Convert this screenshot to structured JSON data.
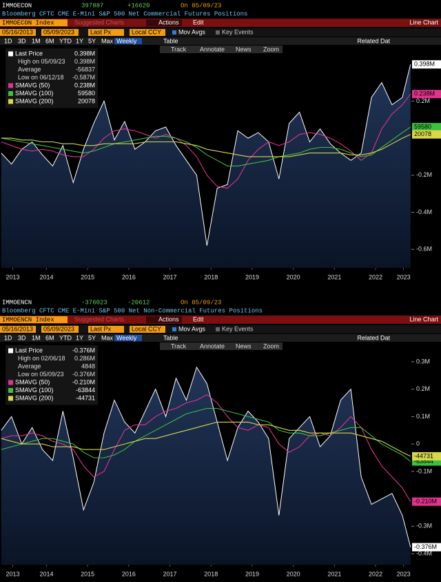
{
  "ui": {
    "suggested": "Suggested Charts",
    "actions": "Actions",
    "edit": "Edit",
    "line_chart": "Line Chart",
    "start": "05/16/2013",
    "end": "05/09/2023",
    "last_px": "Last Px",
    "ccy": "Local CCY",
    "mov_avgs": "Mov Avgs",
    "key_events": "Key Events",
    "periods": [
      "1D",
      "3D",
      "1M",
      "6M",
      "YTD",
      "1Y",
      "5Y",
      "Max"
    ],
    "freq": "Weekly",
    "table": "Table",
    "related": "Related Dat",
    "tools": [
      "Track",
      "Annotate",
      "News",
      "Zoom"
    ]
  },
  "chart_data": [
    {
      "type": "line",
      "ticker": "IMMOECON",
      "last": "397887",
      "change": "+16620",
      "date": "On 05/09/23",
      "title": "Bloomberg CFTC CME E-Mini S&P 500 Net Commercial Futures Positions",
      "index": "IMMOECON Index",
      "legend": "upper left",
      "x": [
        2013.4,
        2013.65,
        2013.9,
        2014.15,
        2014.4,
        2014.65,
        2014.9,
        2015.15,
        2015.4,
        2015.65,
        2015.9,
        2016.15,
        2016.4,
        2016.65,
        2016.9,
        2017.15,
        2017.4,
        2017.65,
        2017.9,
        2018.15,
        2018.4,
        2018.65,
        2018.9,
        2019.15,
        2019.4,
        2019.65,
        2019.9,
        2020.15,
        2020.4,
        2020.65,
        2020.9,
        2021.15,
        2021.4,
        2021.65,
        2021.9,
        2022.15,
        2022.4,
        2022.65,
        2022.9,
        2023.15,
        2023.35
      ],
      "xlim": [
        2013.37,
        2023.37
      ],
      "xticks": [
        {
          "value": 2013.68,
          "label": "2013"
        },
        {
          "value": 2014.5,
          "label": "2014"
        },
        {
          "value": 2015.5,
          "label": "2015"
        },
        {
          "value": 2016.5,
          "label": "2016"
        },
        {
          "value": 2017.5,
          "label": "2017"
        },
        {
          "value": 2018.5,
          "label": "2018"
        },
        {
          "value": 2019.5,
          "label": "2019"
        },
        {
          "value": 2020.5,
          "label": "2020"
        },
        {
          "value": 2021.5,
          "label": "2021"
        },
        {
          "value": 2022.5,
          "label": "2022"
        },
        {
          "value": 2023.18,
          "label": "2023"
        }
      ],
      "ylim": [
        -0.7,
        0.44
      ],
      "yticks": [
        {
          "value": 0.2,
          "label": "0.2M"
        },
        {
          "value": -0.2,
          "label": "-0.2M"
        },
        {
          "value": -0.4,
          "label": "-0.4M"
        },
        {
          "value": -0.6,
          "label": "-0.6M"
        }
      ],
      "stats": [
        {
          "label": "High on 05/09/23",
          "value_label": "0.398M"
        },
        {
          "label": "Average",
          "value_label": "-56837"
        },
        {
          "label": "Low on 06/12/18",
          "value_label": "-0.587M"
        }
      ],
      "series": [
        {
          "name": "Last Price",
          "color": "#ffffff",
          "fill": true,
          "last_label": "0.398M",
          "values": [
            -0.08,
            -0.14,
            -0.06,
            -0.02,
            -0.09,
            -0.15,
            -0.04,
            -0.24,
            -0.06,
            0.08,
            0.2,
            -0.01,
            0.09,
            -0.06,
            -0.02,
            0.04,
            0.06,
            -0.04,
            -0.12,
            -0.2,
            -0.58,
            -0.27,
            -0.25,
            0.04,
            0.0,
            0.03,
            -0.02,
            -0.22,
            0.08,
            0.14,
            -0.02,
            0.05,
            -0.03,
            -0.08,
            -0.12,
            -0.08,
            0.22,
            0.3,
            0.18,
            0.22,
            0.398
          ]
        },
        {
          "name": "SMAVG (50)",
          "color": "#e0338c",
          "last_label": "0.238M",
          "values": [
            -0.02,
            -0.04,
            -0.06,
            -0.07,
            -0.06,
            -0.07,
            -0.09,
            -0.1,
            -0.1,
            -0.06,
            0.0,
            0.04,
            0.05,
            0.04,
            0.02,
            0.0,
            0.02,
            0.0,
            -0.04,
            -0.1,
            -0.2,
            -0.26,
            -0.27,
            -0.22,
            -0.12,
            -0.06,
            -0.02,
            -0.04,
            -0.02,
            0.02,
            0.03,
            0.02,
            0.0,
            -0.03,
            -0.07,
            -0.12,
            -0.08,
            0.05,
            0.13,
            0.18,
            0.238
          ]
        },
        {
          "name": "SMAVG (100)",
          "color": "#3fbf3f",
          "last_label": "59580",
          "values": [
            0.0,
            -0.01,
            -0.02,
            -0.03,
            -0.04,
            -0.05,
            -0.06,
            -0.07,
            -0.08,
            -0.07,
            -0.05,
            -0.03,
            -0.02,
            -0.01,
            0.0,
            0.01,
            0.01,
            0.0,
            -0.02,
            -0.05,
            -0.09,
            -0.12,
            -0.15,
            -0.15,
            -0.14,
            -0.13,
            -0.12,
            -0.1,
            -0.09,
            -0.08,
            -0.06,
            -0.05,
            -0.05,
            -0.06,
            -0.08,
            -0.1,
            -0.09,
            -0.05,
            -0.01,
            0.03,
            0.05958
          ]
        },
        {
          "name": "SMAVG (200)",
          "color": "#d8d84a",
          "last_label": "20078",
          "values": [
            0.0,
            0.0,
            -0.01,
            -0.01,
            -0.02,
            -0.02,
            -0.03,
            -0.03,
            -0.04,
            -0.04,
            -0.03,
            -0.03,
            -0.03,
            -0.03,
            -0.02,
            -0.02,
            -0.02,
            -0.02,
            -0.03,
            -0.04,
            -0.06,
            -0.07,
            -0.08,
            -0.09,
            -0.1,
            -0.1,
            -0.1,
            -0.1,
            -0.1,
            -0.09,
            -0.08,
            -0.08,
            -0.08,
            -0.08,
            -0.09,
            -0.09,
            -0.08,
            -0.06,
            -0.03,
            0.0,
            0.020078
          ]
        }
      ]
    },
    {
      "type": "line",
      "ticker": "IMMOENCN",
      "last": "-376023",
      "change": "-20612",
      "date": "On 05/09/23",
      "title": "Bloomberg CFTC CME E-Mini S&P 500 Net Non-Commercial Futures Positions",
      "index": "IMMOENCN Index",
      "legend": "upper left",
      "x": [
        2013.4,
        2013.65,
        2013.9,
        2014.15,
        2014.4,
        2014.65,
        2014.9,
        2015.15,
        2015.4,
        2015.65,
        2015.9,
        2016.15,
        2016.4,
        2016.65,
        2016.9,
        2017.15,
        2017.4,
        2017.65,
        2017.9,
        2018.15,
        2018.4,
        2018.65,
        2018.9,
        2019.15,
        2019.4,
        2019.65,
        2019.9,
        2020.15,
        2020.4,
        2020.65,
        2020.9,
        2021.15,
        2021.4,
        2021.65,
        2021.9,
        2022.15,
        2022.4,
        2022.65,
        2022.9,
        2023.15,
        2023.35
      ],
      "xlim": [
        2013.37,
        2023.37
      ],
      "xticks": [
        {
          "value": 2013.68,
          "label": "2013"
        },
        {
          "value": 2014.5,
          "label": "2014"
        },
        {
          "value": 2015.5,
          "label": "2015"
        },
        {
          "value": 2016.5,
          "label": "2016"
        },
        {
          "value": 2017.5,
          "label": "2017"
        },
        {
          "value": 2018.5,
          "label": "2018"
        },
        {
          "value": 2019.5,
          "label": "2019"
        },
        {
          "value": 2020.5,
          "label": "2020"
        },
        {
          "value": 2021.5,
          "label": "2021"
        },
        {
          "value": 2022.5,
          "label": "2022"
        },
        {
          "value": 2023.18,
          "label": "2023"
        }
      ],
      "ylim": [
        -0.44,
        0.33
      ],
      "yticks": [
        {
          "value": 0.3,
          "label": "0.3M"
        },
        {
          "value": 0.2,
          "label": "0.2M"
        },
        {
          "value": 0.1,
          "label": "0.1M"
        },
        0,
        {
          "value": -0.1,
          "label": "-0.1M"
        },
        {
          "value": -0.3,
          "label": "-0.3M"
        },
        {
          "value": -0.4,
          "label": "-0.4M"
        }
      ],
      "stats": [
        {
          "label": "High on 02/06/18",
          "value_label": "0.286M"
        },
        {
          "label": "Average",
          "value_label": "4848"
        },
        {
          "label": "Low on 05/09/23",
          "value_label": "-0.376M"
        }
      ],
      "series": [
        {
          "name": "Last Price",
          "color": "#ffffff",
          "fill": true,
          "last_label": "-0.376M",
          "values": [
            0.05,
            0.1,
            0.0,
            0.06,
            -0.02,
            -0.06,
            0.12,
            -0.05,
            -0.24,
            -0.14,
            0.04,
            0.16,
            0.08,
            0.04,
            0.12,
            0.2,
            0.1,
            0.24,
            0.16,
            0.28,
            0.22,
            0.08,
            -0.06,
            0.06,
            0.12,
            0.08,
            0.02,
            -0.26,
            0.02,
            0.06,
            0.1,
            -0.01,
            0.03,
            0.16,
            0.2,
            -0.12,
            -0.22,
            -0.2,
            -0.18,
            -0.26,
            -0.376
          ]
        },
        {
          "name": "SMAVG (50)",
          "color": "#e0338c",
          "last_label": "-0.210M",
          "values": [
            0.02,
            0.03,
            0.03,
            0.04,
            0.03,
            0.01,
            0.0,
            -0.02,
            -0.08,
            -0.12,
            -0.1,
            -0.02,
            0.05,
            0.07,
            0.07,
            0.1,
            0.12,
            0.13,
            0.15,
            0.16,
            0.18,
            0.15,
            0.1,
            0.06,
            0.05,
            0.07,
            0.06,
            0.0,
            -0.03,
            -0.01,
            0.03,
            0.04,
            0.03,
            0.06,
            0.1,
            0.06,
            -0.02,
            -0.08,
            -0.12,
            -0.16,
            -0.21
          ]
        },
        {
          "name": "SMAVG (100)",
          "color": "#3fbf3f",
          "last_label": "-63844",
          "values": [
            -0.02,
            -0.01,
            0.0,
            0.01,
            0.02,
            0.02,
            0.01,
            0.0,
            -0.03,
            -0.05,
            -0.05,
            -0.04,
            -0.02,
            0.01,
            0.03,
            0.05,
            0.07,
            0.09,
            0.11,
            0.12,
            0.13,
            0.13,
            0.12,
            0.11,
            0.1,
            0.09,
            0.08,
            0.05,
            0.04,
            0.04,
            0.03,
            0.03,
            0.04,
            0.05,
            0.06,
            0.06,
            0.03,
            0.0,
            -0.02,
            -0.04,
            -0.063844
          ]
        },
        {
          "name": "SMAVG (200)",
          "color": "#d8d84a",
          "last_label": "-44731",
          "values": [
            0.02,
            0.01,
            0.0,
            0.0,
            0.0,
            -0.01,
            -0.01,
            -0.01,
            -0.02,
            -0.02,
            -0.02,
            -0.01,
            0.0,
            0.01,
            0.02,
            0.02,
            0.03,
            0.04,
            0.05,
            0.06,
            0.07,
            0.08,
            0.08,
            0.08,
            0.08,
            0.07,
            0.07,
            0.06,
            0.05,
            0.05,
            0.04,
            0.04,
            0.04,
            0.04,
            0.04,
            0.03,
            0.02,
            0.01,
            -0.01,
            -0.03,
            -0.044731
          ]
        }
      ]
    }
  ]
}
